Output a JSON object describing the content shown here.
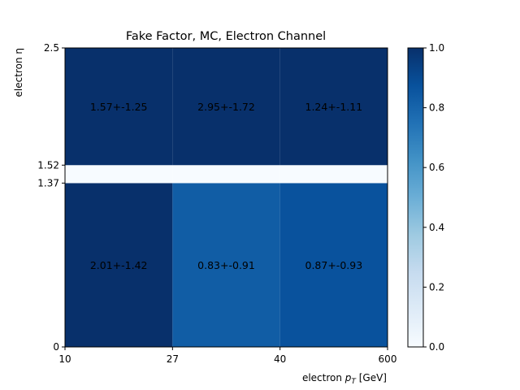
{
  "chart_data": {
    "type": "heatmap",
    "title": "Fake Factor, MC, Electron Channel",
    "xlabel": "electron p_T [GeV]",
    "xlabel_main": "electron ",
    "xlabel_p": "p",
    "xlabel_sub": "T",
    "xlabel_unit": " [GeV]",
    "ylabel": "electron η",
    "x_bin_edges": [
      "10",
      "27",
      "40",
      "600"
    ],
    "y_bin_edges": [
      "0",
      "1.37",
      "1.52",
      "2.5"
    ],
    "cells": [
      {
        "row": 0,
        "col": 0,
        "color_value": 1.0,
        "label": "2.01+-1.42"
      },
      {
        "row": 0,
        "col": 1,
        "color_value": 0.83,
        "label": "0.83+-0.91"
      },
      {
        "row": 0,
        "col": 2,
        "color_value": 0.87,
        "label": "0.87+-0.93"
      },
      {
        "row": 1,
        "col": 0,
        "color_value": 0.0,
        "label": ""
      },
      {
        "row": 1,
        "col": 1,
        "color_value": 0.0,
        "label": ""
      },
      {
        "row": 1,
        "col": 2,
        "color_value": 0.0,
        "label": ""
      },
      {
        "row": 2,
        "col": 0,
        "color_value": 1.0,
        "label": "1.57+-1.25"
      },
      {
        "row": 2,
        "col": 1,
        "color_value": 1.0,
        "label": "2.95+-1.72"
      },
      {
        "row": 2,
        "col": 2,
        "color_value": 1.0,
        "label": "1.24+-1.11"
      }
    ],
    "colorbar": {
      "colormap": "Blues",
      "range": [
        0.0,
        1.0
      ],
      "ticks": [
        "0.0",
        "0.2",
        "0.4",
        "0.6",
        "0.8",
        "1.0"
      ]
    }
  }
}
